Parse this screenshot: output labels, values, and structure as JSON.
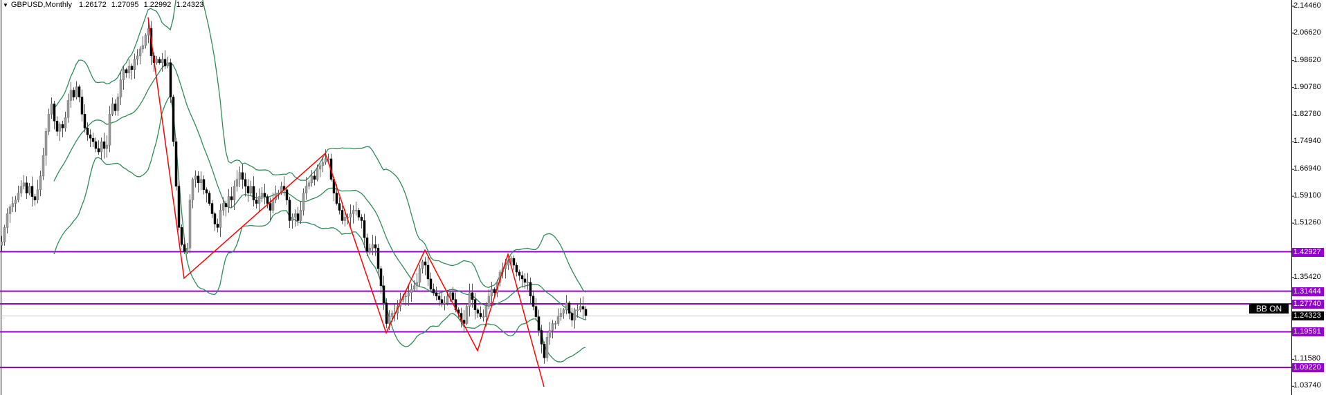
{
  "header": {
    "symbol_timeframe": "GBPUSD,Monthly",
    "open": "1.26172",
    "high": "1.27095",
    "low": "1.22992",
    "close": "1.24323"
  },
  "indicator_label": "BB ON",
  "colors": {
    "level_line": "#9400d3",
    "bollinger": "#2e8b57",
    "zigzag": "#ff0000",
    "bull_body": "#9a9a9a",
    "bear_body": "#000000",
    "bid_line": "#c8c8c8"
  },
  "chart_data": {
    "type": "candlestick",
    "title": "GBPUSD,Monthly",
    "ylim": [
      1.0374,
      2.1446
    ],
    "grid": false,
    "y_ticks": [
      "2.14460",
      "2.06620",
      "1.98620",
      "1.90780",
      "1.82780",
      "1.74940",
      "1.66940",
      "1.59100",
      "1.51260",
      "1.35420",
      "1.11580",
      "1.03740"
    ],
    "closes": [
      1.458,
      1.5,
      1.54,
      1.56,
      1.57,
      1.58,
      1.6,
      1.62,
      1.63,
      1.6,
      1.62,
      1.59,
      1.58,
      1.61,
      1.65,
      1.71,
      1.78,
      1.83,
      1.86,
      1.81,
      1.78,
      1.8,
      1.79,
      1.82,
      1.87,
      1.9,
      1.88,
      1.91,
      1.88,
      1.83,
      1.79,
      1.77,
      1.76,
      1.75,
      1.73,
      1.72,
      1.75,
      1.73,
      1.74,
      1.83,
      1.86,
      1.84,
      1.88,
      1.93,
      1.96,
      1.95,
      1.97,
      1.96,
      1.99,
      2.0,
      2.02,
      2.03,
      2.06,
      2.08,
      2.0,
      1.98,
      1.99,
      1.98,
      1.99,
      1.97,
      1.98,
      1.88,
      1.75,
      1.62,
      1.5,
      1.45,
      1.43,
      1.44,
      1.58,
      1.64,
      1.65,
      1.63,
      1.64,
      1.61,
      1.6,
      1.57,
      1.54,
      1.51,
      1.5,
      1.55,
      1.57,
      1.56,
      1.59,
      1.58,
      1.62,
      1.64,
      1.66,
      1.64,
      1.62,
      1.6,
      1.62,
      1.58,
      1.57,
      1.59,
      1.6,
      1.59,
      1.57,
      1.55,
      1.58,
      1.6,
      1.6,
      1.62,
      1.61,
      1.58,
      1.52,
      1.53,
      1.54,
      1.52,
      1.55,
      1.6,
      1.62,
      1.63,
      1.65,
      1.64,
      1.67,
      1.68,
      1.69,
      1.7,
      1.7,
      1.64,
      1.6,
      1.57,
      1.55,
      1.52,
      1.53,
      1.53,
      1.54,
      1.55,
      1.55,
      1.53,
      1.52,
      1.47,
      1.43,
      1.44,
      1.45,
      1.44,
      1.38,
      1.33,
      1.28,
      1.22,
      1.24,
      1.25,
      1.25,
      1.27,
      1.29,
      1.3,
      1.3,
      1.31,
      1.32,
      1.33,
      1.34,
      1.38,
      1.4,
      1.39,
      1.35,
      1.32,
      1.31,
      1.3,
      1.29,
      1.28,
      1.28,
      1.3,
      1.31,
      1.29,
      1.26,
      1.25,
      1.23,
      1.22,
      1.27,
      1.31,
      1.29,
      1.26,
      1.25,
      1.24,
      1.24,
      1.27,
      1.3,
      1.32,
      1.31,
      1.34,
      1.37,
      1.38,
      1.39,
      1.4,
      1.41,
      1.39,
      1.37,
      1.36,
      1.35,
      1.34,
      1.34,
      1.3,
      1.27,
      1.24,
      1.2,
      1.16,
      1.12,
      1.18,
      1.2,
      1.22,
      1.22,
      1.24,
      1.25,
      1.26,
      1.28,
      1.25,
      1.23,
      1.26,
      1.26,
      1.27,
      1.26172,
      1.24323
    ],
    "last_candle": {
      "open": 1.26172,
      "high": 1.27095,
      "low": 1.22992,
      "close": 1.24323
    },
    "bollinger": {
      "period": 20,
      "deviations": 2
    },
    "zigzag": [
      {
        "candle": 53,
        "price": 2.112
      },
      {
        "candle": 66,
        "price": 1.352
      },
      {
        "candle": 117,
        "price": 1.716
      },
      {
        "candle": 139,
        "price": 1.193
      },
      {
        "candle": 153,
        "price": 1.434
      },
      {
        "candle": 172,
        "price": 1.141
      },
      {
        "candle": 183,
        "price": 1.422
      },
      {
        "candle": 196,
        "price": 1.036
      }
    ],
    "levels": [
      "1.42927",
      "1.31444",
      "1.27740",
      "1.19591",
      "1.09220"
    ],
    "bid": "1.24323"
  }
}
